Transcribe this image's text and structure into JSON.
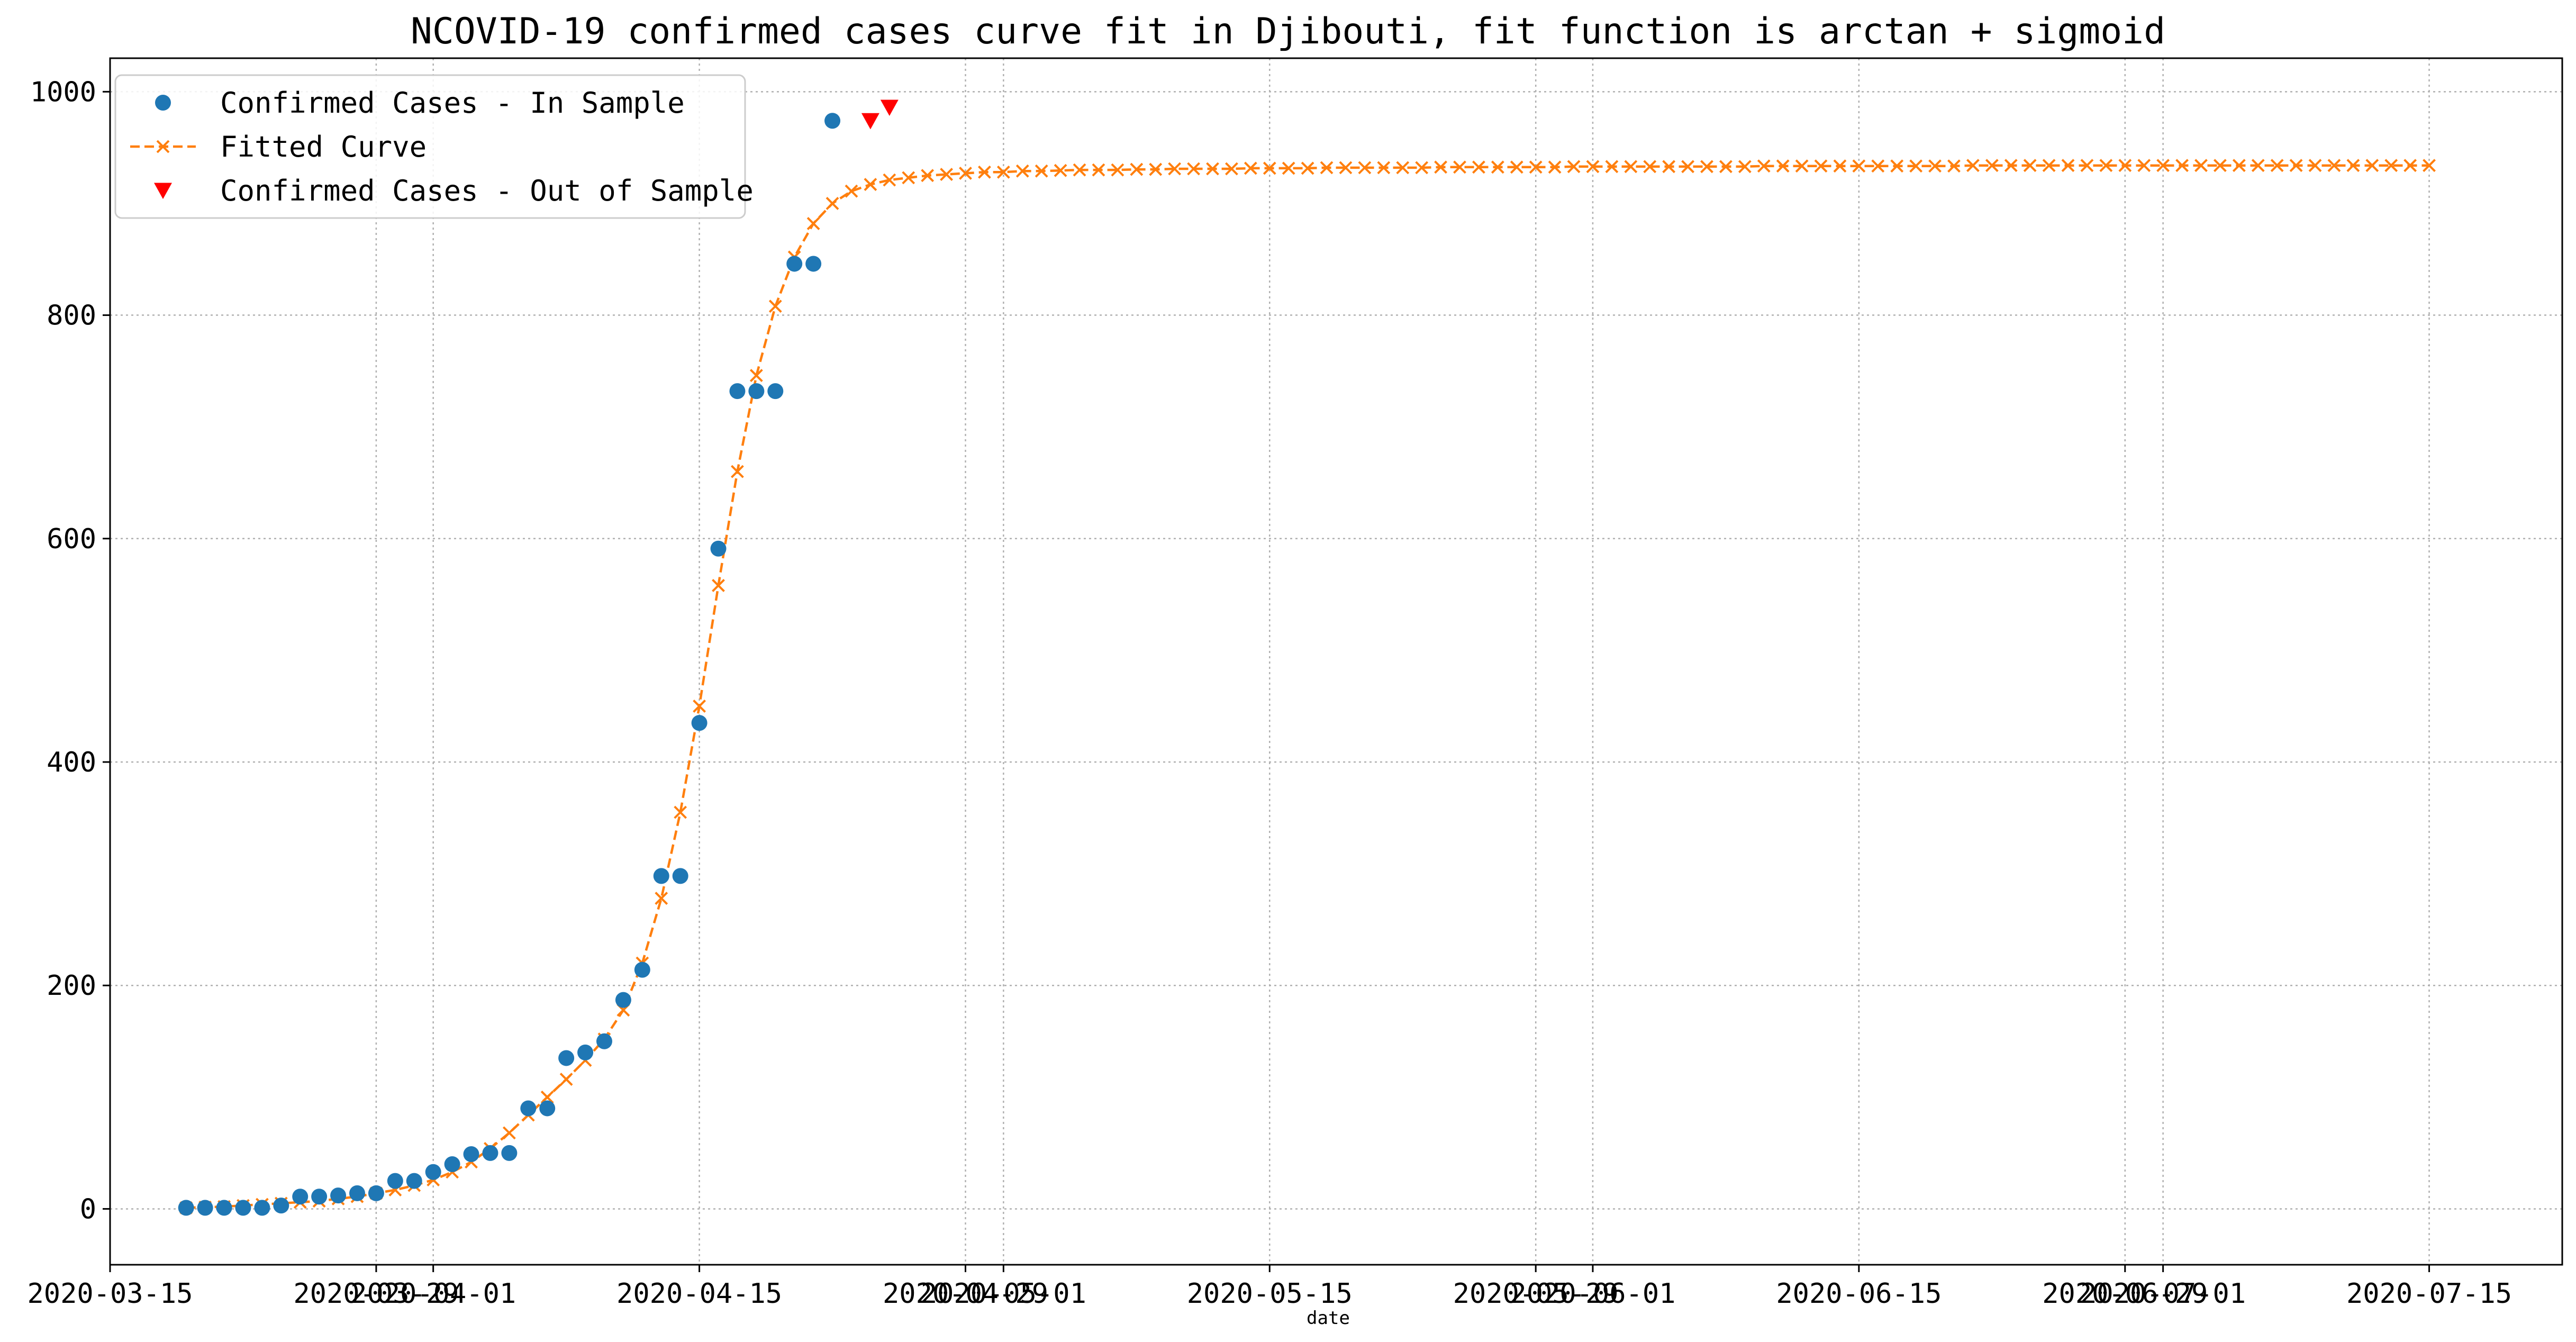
{
  "chart_data": {
    "type": "line",
    "title": "NCOVID-19 confirmed cases curve fit in Djibouti, fit function is arctan + sigmoid",
    "xlabel": "date",
    "ylabel": "",
    "ylim": [
      -50,
      1030
    ],
    "xlim": [
      "2020-03-15",
      "2020-07-22"
    ],
    "y_ticks": [
      0,
      200,
      400,
      600,
      800,
      1000
    ],
    "x_ticks": [
      {
        "date": "2020-03-15",
        "label": "2020-03-15"
      },
      {
        "date": "2020-03-29",
        "label": "2020-03-29"
      },
      {
        "date": "2020-04-01",
        "label": "2020-04-01"
      },
      {
        "date": "2020-04-15",
        "label": "2020-04-15"
      },
      {
        "date": "2020-04-29",
        "label": "2020-04-29"
      },
      {
        "date": "2020-05-01",
        "label": "2020-05-01"
      },
      {
        "date": "2020-05-15",
        "label": "2020-05-15"
      },
      {
        "date": "2020-05-29",
        "label": "2020-05-29"
      },
      {
        "date": "2020-06-01",
        "label": "2020-06-01"
      },
      {
        "date": "2020-06-15",
        "label": "2020-06-15"
      },
      {
        "date": "2020-06-29",
        "label": "2020-06-29"
      },
      {
        "date": "2020-07-01",
        "label": "2020-07-01"
      },
      {
        "date": "2020-07-15",
        "label": "2020-07-15"
      }
    ],
    "grid": true,
    "legend_position": "top-left",
    "colors": {
      "in_sample": "#1f77b4",
      "fitted": "#ff7f0e",
      "out_sample": "#ff0000",
      "grid": "#b0b0b0"
    },
    "series": [
      {
        "name": "Confirmed Cases - In Sample",
        "style": "markers-circle",
        "x_start": "2020-03-19",
        "values": [
          1,
          1,
          1,
          1,
          1,
          3,
          11,
          11,
          12,
          14,
          14,
          25,
          25,
          33,
          40,
          49,
          50,
          50,
          90,
          90,
          135,
          140,
          150,
          187,
          214,
          298,
          298,
          435,
          591,
          732,
          732,
          732,
          846,
          846,
          974
        ]
      },
      {
        "name": "Fitted Curve",
        "style": "dashed-x",
        "x_start": "2020-03-19",
        "values": [
          1,
          1.5,
          2,
          3,
          4,
          5,
          6,
          7,
          9,
          11,
          14,
          17,
          21,
          26,
          33,
          42,
          54,
          68,
          84,
          100,
          116,
          133,
          152,
          178,
          220,
          278,
          355,
          450,
          558,
          660,
          746,
          808,
          852,
          882,
          900,
          911,
          917,
          921,
          923,
          925,
          926,
          927,
          928,
          928,
          929,
          929,
          929.5,
          930,
          930,
          930,
          930.5,
          930.5,
          931,
          931,
          931,
          931,
          931.5,
          931.5,
          931.5,
          931.5,
          932,
          932,
          932,
          932,
          932,
          932,
          932.5,
          932.5,
          932.5,
          932.5,
          932.5,
          932.5,
          932.5,
          933,
          933,
          933,
          933,
          933,
          933,
          933,
          933,
          933,
          933,
          933.5,
          933.5,
          933.5,
          933.5,
          933.5,
          933.5,
          933.5,
          933.5,
          933.5,
          933.5,
          933.5,
          934,
          934,
          934,
          934,
          934,
          934,
          934,
          934,
          934,
          934,
          934,
          934,
          934,
          934,
          934,
          934,
          934,
          934,
          934,
          934,
          934,
          934,
          934,
          934,
          934
        ]
      },
      {
        "name": "Confirmed Cases - Out of Sample",
        "style": "markers-triangle-down",
        "x": [
          "2020-04-24",
          "2020-04-25"
        ],
        "values": [
          974,
          986
        ]
      }
    ]
  }
}
